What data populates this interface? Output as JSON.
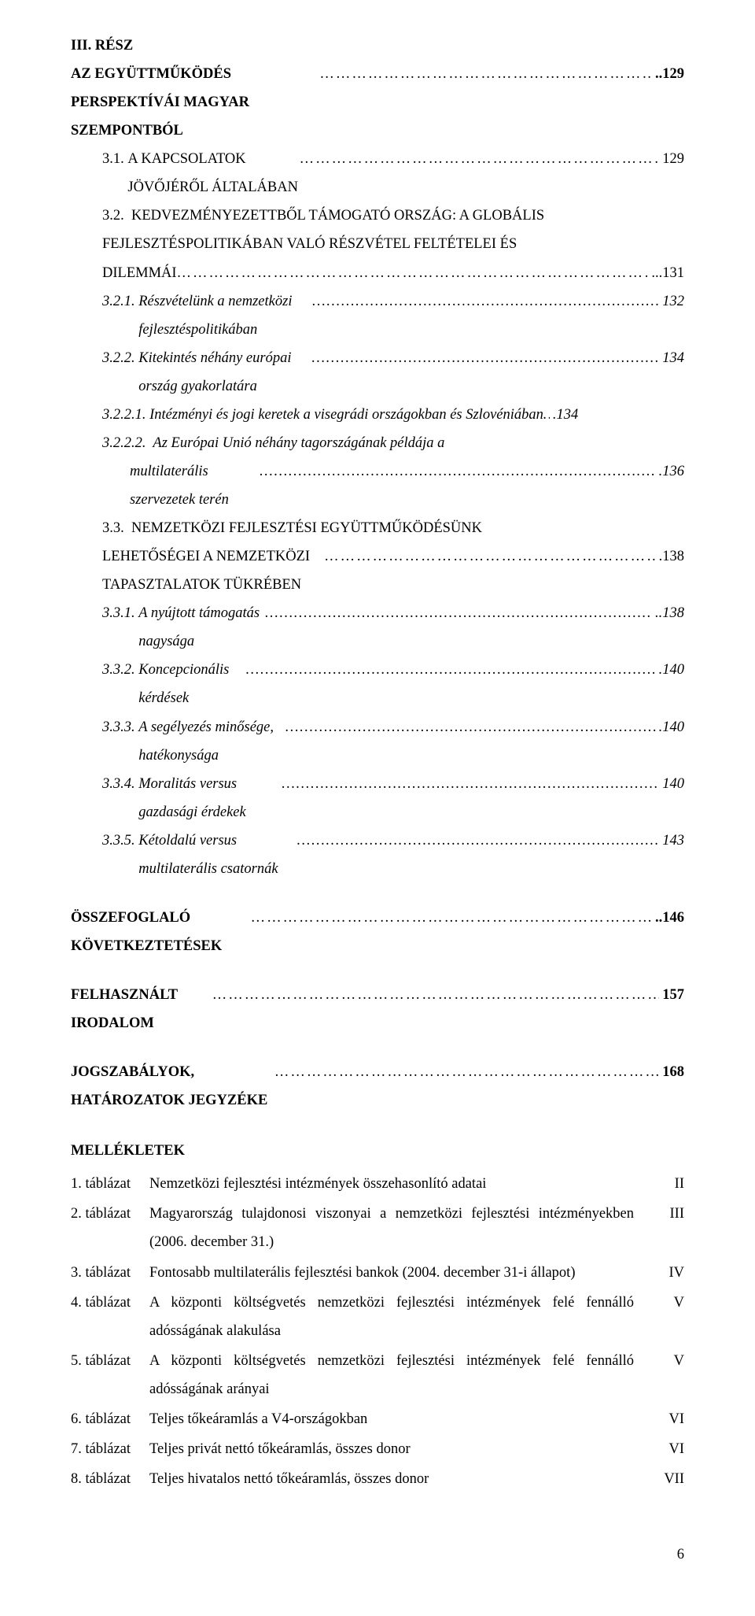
{
  "part": {
    "number": "III. RÉSZ",
    "title": "AZ EGYÜTTMŰKÖDÉS PERSPEKTÍVÁI MAGYAR SZEMPONTBÓL",
    "page": "..129"
  },
  "toc": {
    "e31": {
      "num": "3.1.",
      "text": "A KAPCSOLATOK JÖVŐJÉRŐL ÁLTALÁBAN",
      "page": "129"
    },
    "e32": {
      "num": "3.2.",
      "text": "KEDVEZMÉNYEZETTBŐL TÁMOGATÓ ORSZÁG: A GLOBÁLIS",
      "text2": "FEJLESZTÉSPOLITIKÁBAN VALÓ RÉSZVÉTEL FELTÉTELEI ÉS",
      "text3": "DILEMMÁI",
      "page": "...131"
    },
    "e321": {
      "num": "3.2.1.",
      "text": "Részvételünk a nemzetközi fejlesztéspolitikában",
      "page": "132"
    },
    "e322": {
      "num": "3.2.2.",
      "text": "Kitekintés néhány európai ország gyakorlatára",
      "page": "134"
    },
    "e3221": {
      "num": "3.2.2.1.",
      "text": "Intézményi és jogi keretek a visegrádi országokban és Szlovéniában",
      "page": ".134"
    },
    "e3222": {
      "num": "3.2.2.2.",
      "text": "Az Európai Unió néhány tagországának példája a",
      "text2": "multilaterális szervezetek terén",
      "page": ".136"
    },
    "e33": {
      "num": "3.3.",
      "text": "NEMZETKÖZI FEJLESZTÉSI EGYÜTTMŰKÖDÉSÜNK",
      "text2": "LEHETŐSÉGEI A NEMZETKÖZI TAPASZTALATOK TÜKRÉBEN",
      "page": ".138"
    },
    "e331": {
      "num": "3.3.1.",
      "text": "A nyújtott támogatás nagysága",
      "page": "..138"
    },
    "e332": {
      "num": "3.3.2.",
      "text": "Koncepcionális kérdések",
      "page": ".140"
    },
    "e333": {
      "num": "3.3.3.",
      "text": "A segélyezés minősége, hatékonysága",
      "page": ".140"
    },
    "e334": {
      "num": "3.3.4.",
      "text": "Moralitás versus gazdasági érdekek",
      "page": "140"
    },
    "e335": {
      "num": "3.3.5.",
      "text": "Kétoldalú versus multilaterális csatornák",
      "page": "143"
    }
  },
  "ossz": {
    "label": "ÖSSZEFOGLALÓ KÖVETKEZTETÉSEK",
    "page": "..146"
  },
  "felh": {
    "label": "FELHASZNÁLT IRODALOM",
    "page": "157"
  },
  "jogs": {
    "label": "JOGSZABÁLYOK, HATÁROZATOK JEGYZÉKE",
    "page": "168"
  },
  "mell": {
    "heading": "MELLÉKLETEK",
    "rows": [
      {
        "label": "1. táblázat",
        "desc": "Nemzetközi fejlesztési intézmények összehasonlító adatai",
        "page": "II"
      },
      {
        "label": "2. táblázat",
        "desc": "Magyarország tulajdonosi viszonyai a nemzetközi fejlesztési intézményekben (2006. december 31.)",
        "page": "III"
      },
      {
        "label": "3. táblázat",
        "desc": "Fontosabb multilaterális fejlesztési bankok (2004. december 31-i állapot)",
        "page": "IV"
      },
      {
        "label": "4. táblázat",
        "desc": "A központi költségvetés nemzetközi fejlesztési intézmények felé fennálló adósságának alakulása",
        "page": "V"
      },
      {
        "label": "5. táblázat",
        "desc": "A központi költségvetés nemzetközi fejlesztési intézmények felé fennálló adósságának arányai",
        "page": "V"
      },
      {
        "label": "6. táblázat",
        "desc": "Teljes tőkeáramlás a V4-országokban",
        "page": "VI"
      },
      {
        "label": "7. táblázat",
        "desc": "Teljes privát nettó tőkeáramlás, összes donor",
        "page": "VI"
      },
      {
        "label": "8. táblázat",
        "desc": "Teljes hivatalos nettó tőkeáramlás, összes donor",
        "page": "VII"
      }
    ]
  },
  "footerPage": "6"
}
